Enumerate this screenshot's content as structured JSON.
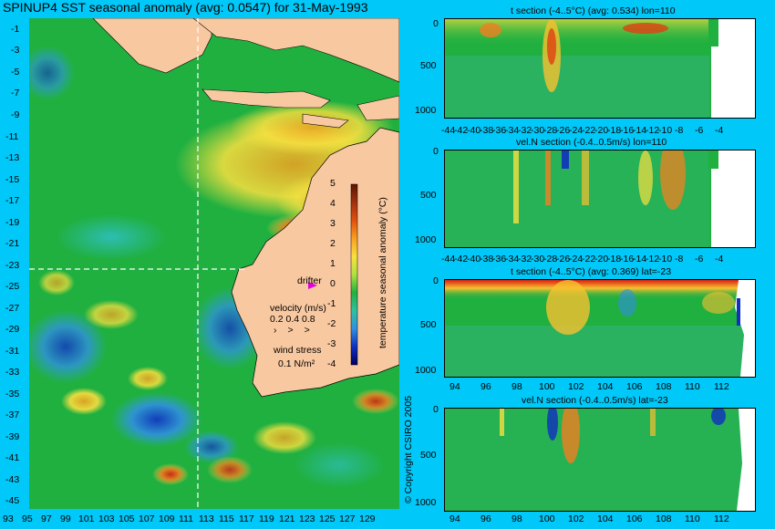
{
  "map": {
    "title": "SPINUP4 SST seasonal anomaly (avg: 0.0547) for 31-May-1993",
    "lat_labels": [
      "-1",
      "-3",
      "-5",
      "-7",
      "-9",
      "-11",
      "-13",
      "-15",
      "-17",
      "-19",
      "-21",
      "-23",
      "-25",
      "-27",
      "-29",
      "-31",
      "-33",
      "-35",
      "-37",
      "-39",
      "-41",
      "-43",
      "-45"
    ],
    "lon_labels": [
      "93",
      "95",
      "97",
      "99",
      "101",
      "103",
      "105",
      "107",
      "109",
      "111",
      "113",
      "115",
      "117",
      "119",
      "121",
      "123",
      "125",
      "127",
      "129"
    ],
    "colorbar": {
      "label": "temperature seasonal anomaly (°C)",
      "ticks": [
        "5",
        "4",
        "3",
        "2",
        "1",
        "0",
        "-1",
        "-2",
        "-3",
        "-4"
      ]
    },
    "drifter_label": "drifter",
    "velocity": {
      "title": "velocity (m/s)",
      "scale": "0.2 0.4 0.8"
    },
    "wind": {
      "title": "wind stress",
      "value": "0.1 N/m²"
    },
    "copyright": "© Copyright CSIRO 2005",
    "colors": {
      "ocean_bg": "#19b43c",
      "land": "#f8c8a0",
      "page_bg": "#00c8f8",
      "drifter": "#e000e0"
    }
  },
  "sections": [
    {
      "title": "t section (-4..5°C) (avg: 0.534) lon=110",
      "y_ticks": [
        "0",
        "500",
        "1000"
      ],
      "x_ticks": [
        "-44",
        "-42",
        "-40",
        "-38",
        "-36",
        "-34",
        "-32",
        "-30",
        "-28",
        "-26",
        "-24",
        "-22",
        "-20",
        "-18",
        "-16",
        "-14",
        "-12",
        "-10",
        "-8",
        "-6",
        "-4"
      ]
    },
    {
      "title": "vel.N section (-0.4..0.5m/s) lon=110",
      "y_ticks": [
        "0",
        "500",
        "1000"
      ],
      "x_ticks": [
        "-44",
        "-42",
        "-40",
        "-38",
        "-36",
        "-34",
        "-32",
        "-30",
        "-28",
        "-26",
        "-24",
        "-22",
        "-20",
        "-18",
        "-16",
        "-14",
        "-12",
        "-10",
        "-8",
        "-6",
        "-4"
      ]
    },
    {
      "title": "t section (-4..5°C) (avg: 0.369) lat=-23",
      "y_ticks": [
        "0",
        "500",
        "1000"
      ],
      "x_ticks": [
        "94",
        "96",
        "98",
        "100",
        "102",
        "104",
        "106",
        "108",
        "110",
        "112"
      ]
    },
    {
      "title": "vel.N section (-0.4..0.5m/s) lat=-23",
      "y_ticks": [
        "0",
        "500",
        "1000"
      ],
      "x_ticks": [
        "94",
        "96",
        "98",
        "100",
        "102",
        "104",
        "106",
        "108",
        "110",
        "112"
      ]
    }
  ]
}
